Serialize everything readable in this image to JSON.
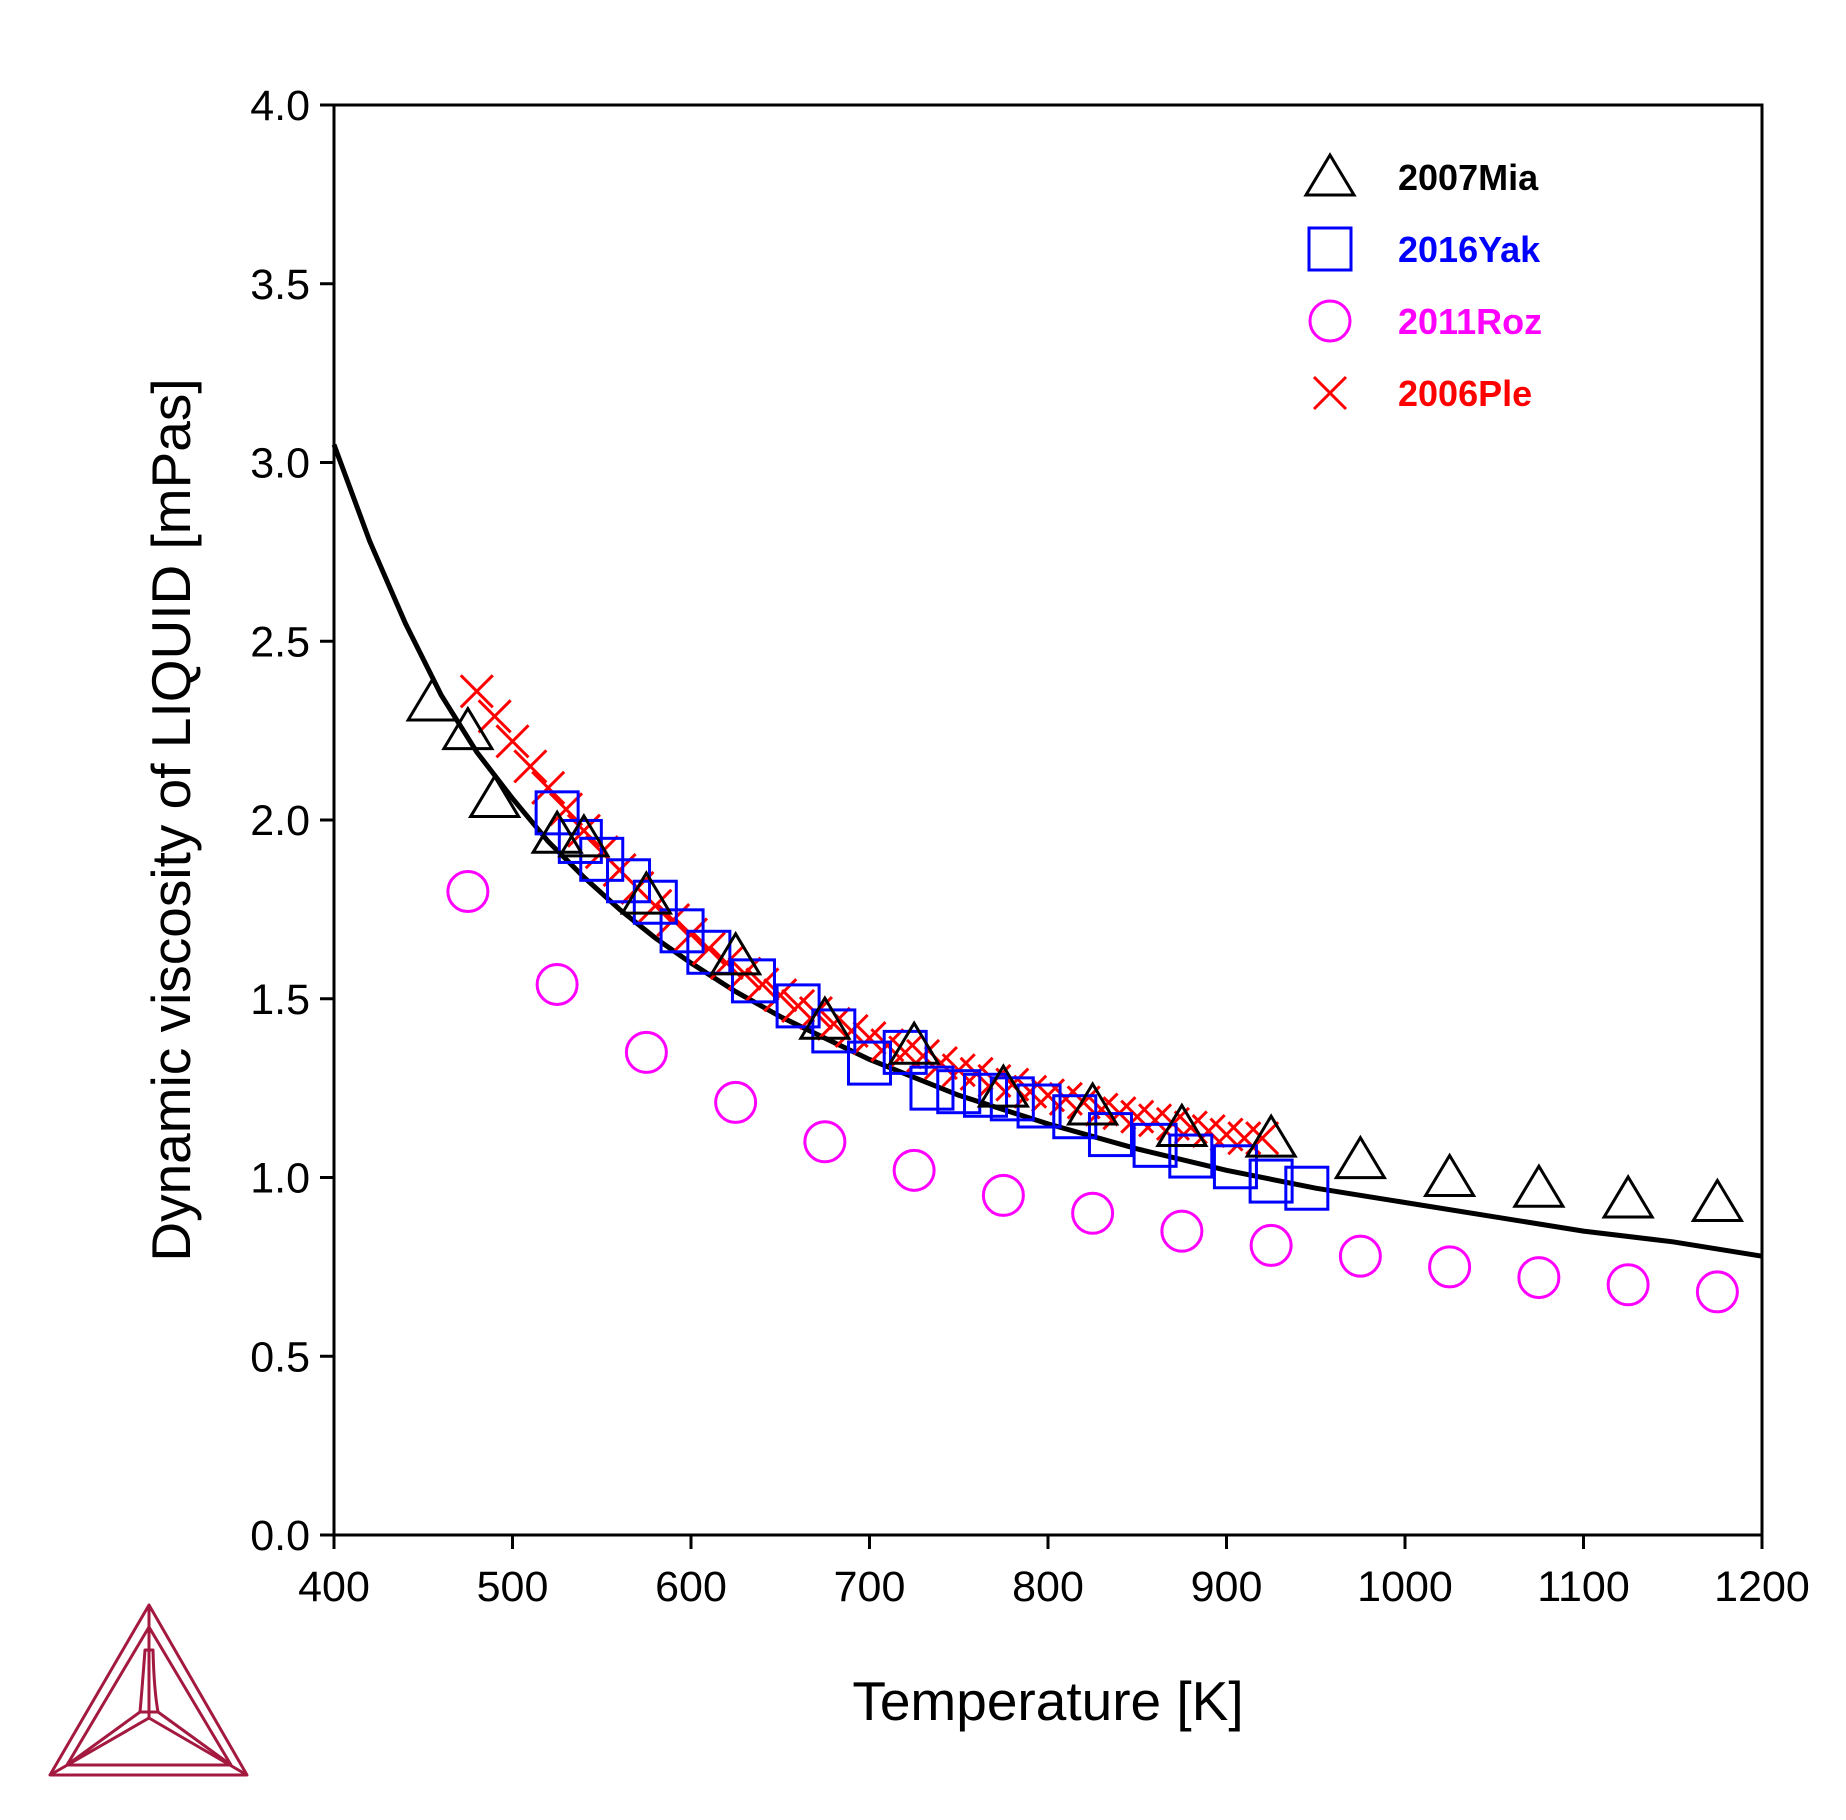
{
  "chart_data": {
    "type": "scatter",
    "title": "",
    "xlabel": "Temperature [K]",
    "ylabel": "Dynamic viscosity of LIQUID [mPas]",
    "xlim": [
      400,
      1200
    ],
    "ylim": [
      0,
      4.0
    ],
    "x_ticks": [
      "400",
      "500",
      "600",
      "700",
      "800",
      "900",
      "1000",
      "1100",
      "1200"
    ],
    "y_ticks": [
      "0.0",
      "0.5",
      "1.0",
      "1.5",
      "2.0",
      "2.5",
      "3.0",
      "3.5",
      "4.0"
    ],
    "grid": false,
    "legend_position": "top-right",
    "model_curve": {
      "color": "#000000",
      "x": [
        400,
        420,
        440,
        460,
        480,
        500,
        520,
        540,
        560,
        580,
        600,
        625,
        650,
        675,
        700,
        725,
        750,
        775,
        800,
        850,
        900,
        950,
        1000,
        1050,
        1100,
        1150,
        1200
      ],
      "y": [
        3.05,
        2.78,
        2.55,
        2.35,
        2.19,
        2.06,
        1.94,
        1.84,
        1.75,
        1.67,
        1.6,
        1.52,
        1.45,
        1.39,
        1.33,
        1.28,
        1.23,
        1.19,
        1.15,
        1.08,
        1.02,
        0.97,
        0.93,
        0.89,
        0.85,
        0.82,
        0.78
      ]
    },
    "series": [
      {
        "name": "2007Mia",
        "marker": "triangle",
        "color": "#000000",
        "x": [
          455,
          475,
          490,
          525,
          540,
          575,
          625,
          675,
          725,
          775,
          825,
          875,
          925,
          975,
          1025,
          1075,
          1125,
          1175
        ],
        "y": [
          2.33,
          2.25,
          2.06,
          1.96,
          1.95,
          1.79,
          1.62,
          1.44,
          1.37,
          1.25,
          1.2,
          1.14,
          1.11,
          1.05,
          1.0,
          0.97,
          0.94,
          0.93
        ]
      },
      {
        "name": "2016Yak",
        "marker": "square",
        "color": "#0000ff",
        "x": [
          525,
          538,
          550,
          565,
          580,
          595,
          610,
          635,
          660,
          680,
          700,
          720,
          735,
          750,
          765,
          780,
          795,
          815,
          835,
          860,
          880,
          905,
          925,
          945
        ],
        "y": [
          2.02,
          1.94,
          1.89,
          1.83,
          1.77,
          1.69,
          1.63,
          1.55,
          1.48,
          1.41,
          1.32,
          1.35,
          1.25,
          1.24,
          1.23,
          1.22,
          1.2,
          1.17,
          1.12,
          1.09,
          1.06,
          1.03,
          0.99,
          0.97
        ]
      },
      {
        "name": "2011Roz",
        "marker": "circle",
        "color": "#ff00ff",
        "x": [
          475,
          525,
          575,
          625,
          675,
          725,
          775,
          825,
          875,
          925,
          975,
          1025,
          1075,
          1125,
          1175
        ],
        "y": [
          1.8,
          1.54,
          1.35,
          1.21,
          1.1,
          1.02,
          0.95,
          0.9,
          0.85,
          0.81,
          0.78,
          0.75,
          0.72,
          0.7,
          0.68
        ]
      },
      {
        "name": "2006Ple",
        "marker": "x",
        "color": "#ff0000",
        "x": [
          480,
          490,
          500,
          510,
          520,
          530,
          540,
          550,
          560,
          570,
          580,
          590,
          600,
          610,
          620,
          630,
          640,
          650,
          660,
          670,
          680,
          690,
          700,
          710,
          720,
          730,
          740,
          750,
          760,
          770,
          780,
          790,
          800,
          810,
          820,
          830,
          840,
          850,
          860,
          870,
          880,
          890,
          900,
          910,
          920
        ],
        "y": [
          2.36,
          2.29,
          2.22,
          2.15,
          2.09,
          2.03,
          1.97,
          1.91,
          1.86,
          1.81,
          1.76,
          1.72,
          1.68,
          1.64,
          1.6,
          1.57,
          1.54,
          1.51,
          1.48,
          1.46,
          1.43,
          1.41,
          1.39,
          1.37,
          1.35,
          1.34,
          1.32,
          1.3,
          1.29,
          1.27,
          1.26,
          1.24,
          1.23,
          1.22,
          1.21,
          1.19,
          1.18,
          1.17,
          1.16,
          1.15,
          1.14,
          1.13,
          1.12,
          1.11,
          1.11
        ]
      }
    ]
  },
  "logo": {
    "name": "thermo-calc-logo",
    "color": "#a3193f"
  }
}
